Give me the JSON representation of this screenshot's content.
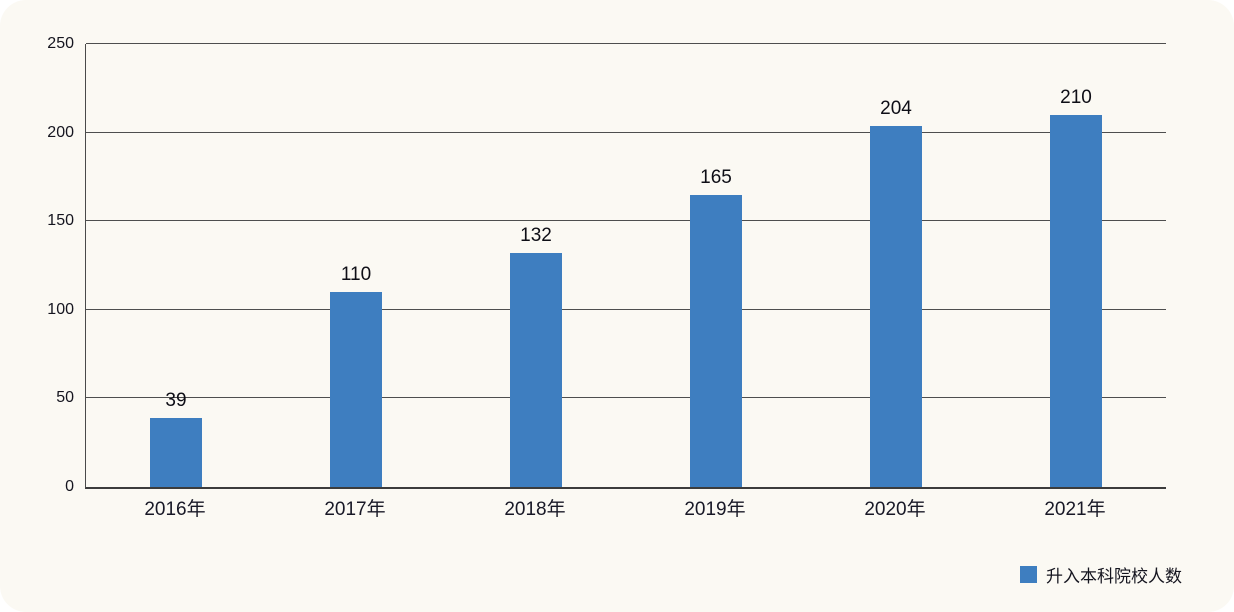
{
  "chart_data": {
    "type": "bar",
    "categories": [
      "2016年",
      "2017年",
      "2018年",
      "2019年",
      "2020年",
      "2021年"
    ],
    "values": [
      39,
      110,
      132,
      165,
      204,
      210
    ],
    "title": "",
    "xlabel": "",
    "ylabel": "",
    "ylim": [
      0,
      250
    ],
    "yticks": [
      0,
      50,
      100,
      150,
      200,
      250
    ],
    "grid": true,
    "legend": {
      "position": "bottom-right",
      "label": "升入本科院校人数"
    },
    "bar_color": "#3e7ec0",
    "background_color": "#fbf9f3",
    "grid_color": "#4e4e4e",
    "text_color": "#15151f"
  }
}
